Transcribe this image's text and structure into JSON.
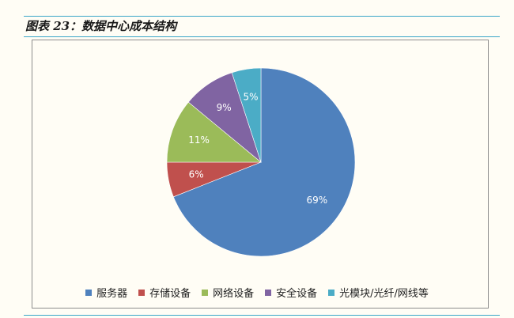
{
  "figure_title": "图表 23：数据中心成本结构",
  "chart_data": {
    "type": "pie",
    "title": "",
    "categories": [
      "服务器",
      "存储设备",
      "网络设备",
      "安全设备",
      "光模块/光纤/网线等"
    ],
    "values": [
      69,
      6,
      11,
      9,
      5
    ],
    "labels": [
      "69%",
      "6%",
      "11%",
      "9%",
      "5%"
    ],
    "colors": [
      "#4f81bd",
      "#c0504d",
      "#9bbb59",
      "#8064a2",
      "#4bacc6"
    ],
    "legend_position": "bottom"
  }
}
